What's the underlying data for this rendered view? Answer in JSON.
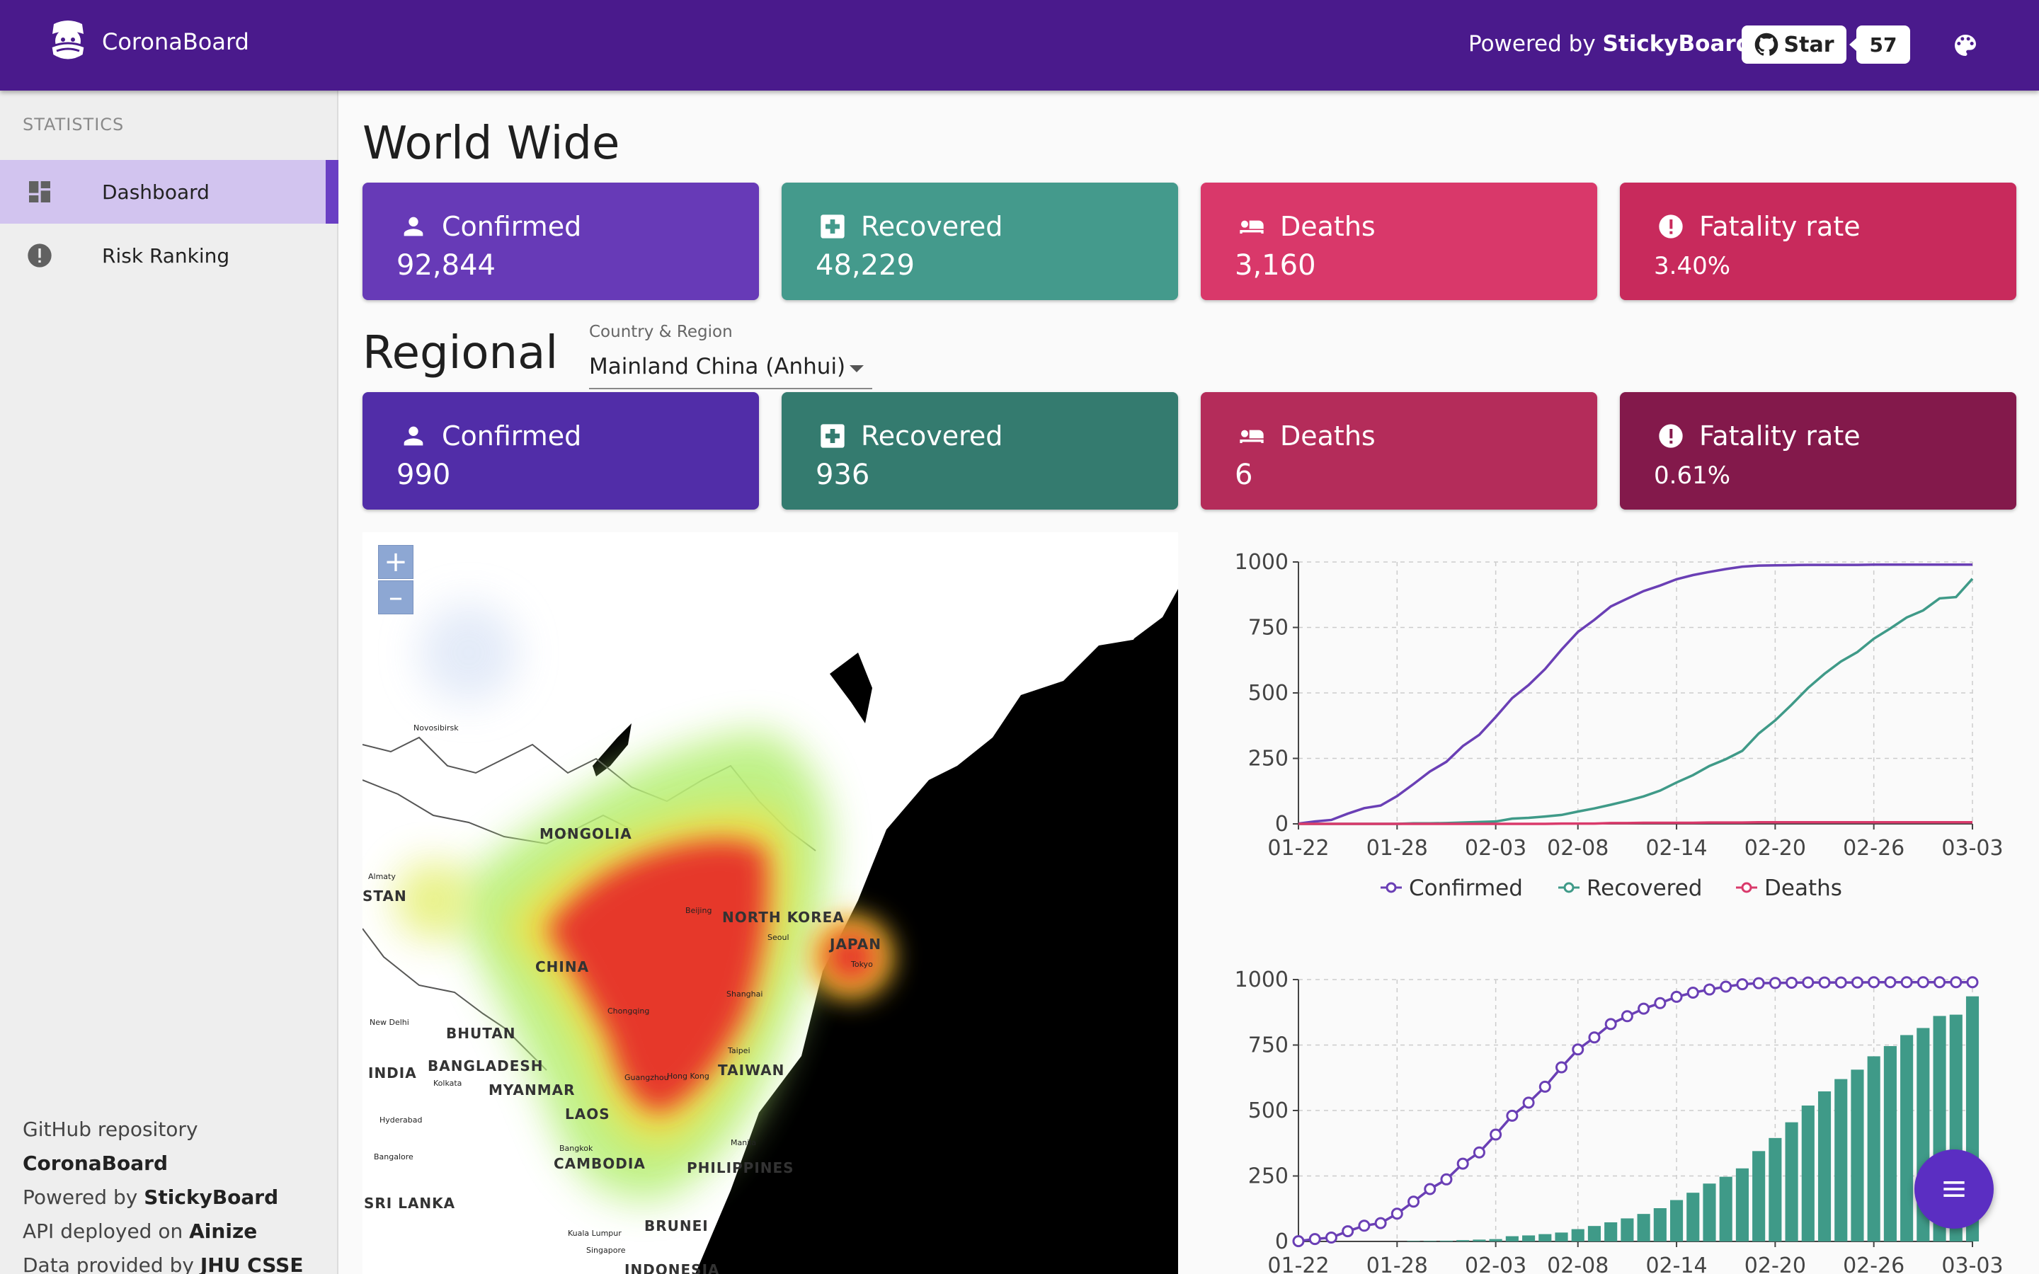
{
  "app": {
    "title": "CoronaBoard"
  },
  "header": {
    "powered_prefix": "Powered by",
    "powered_brand": "StickyBoard",
    "github_star_label": "Star",
    "github_star_count": "57",
    "icons": [
      "corona-mask-logo-icon",
      "github-icon",
      "palette-icon"
    ]
  },
  "sidebar": {
    "section": "STATISTICS",
    "items": [
      {
        "label": "Dashboard",
        "icon": "dashboard-icon",
        "active": true
      },
      {
        "label": "Risk Ranking",
        "icon": "alert-circle-icon",
        "active": false
      }
    ],
    "footer": [
      {
        "prefix": "GitHub repository",
        "link": "CoronaBoard"
      },
      {
        "prefix": "Powered by",
        "link": "StickyBoard"
      },
      {
        "prefix": "API deployed on",
        "link": "Ainize"
      },
      {
        "prefix": "Data provided by",
        "link": "JHU CSSE"
      }
    ]
  },
  "world": {
    "title": "World Wide",
    "cards": [
      {
        "label": "Confirmed",
        "value": "92,844",
        "icon": "person-icon",
        "color": "#673ab7"
      },
      {
        "label": "Recovered",
        "value": "48,229",
        "icon": "medical-plus-icon",
        "color": "#449a8c"
      },
      {
        "label": "Deaths",
        "value": "3,160",
        "icon": "bed-icon",
        "color": "#d9386a"
      },
      {
        "label": "Fatality rate",
        "value": "3.40%",
        "icon": "alert-circle-icon",
        "color": "#c82a5c"
      }
    ]
  },
  "regional": {
    "title": "Regional",
    "select_label": "Country & Region",
    "select_value": "Mainland China (Anhui)",
    "cards": [
      {
        "label": "Confirmed",
        "value": "990",
        "icon": "person-icon",
        "color": "#512da8"
      },
      {
        "label": "Recovered",
        "value": "936",
        "icon": "medical-plus-icon",
        "color": "#347b6f"
      },
      {
        "label": "Deaths",
        "value": "6",
        "icon": "bed-icon",
        "color": "#b42c5a"
      },
      {
        "label": "Fatality rate",
        "value": "0.61%",
        "icon": "alert-circle-icon",
        "color": "#83194b"
      }
    ]
  },
  "map": {
    "zoom_in": "+",
    "zoom_out": "–",
    "labels": [
      "MONGOLIA",
      "NORTH KOREA",
      "JAPAN",
      "CHINA",
      "BHUTAN",
      "INDIA",
      "BANGLADESH",
      "MYANMAR",
      "LAOS",
      "TAIWAN",
      "CAMBODIA",
      "PHILIPPINES",
      "BRUNEI",
      "STAN",
      "SRI LANKA",
      "INDONESIA"
    ],
    "cities": [
      "Novosibirsk",
      "Almaty",
      "Beijing",
      "Seoul",
      "Tokyo",
      "Chongqing",
      "Shanghai",
      "Taipei",
      "Guangzhou",
      "Hong Kong",
      "New Delhi",
      "Kolkata",
      "Hyderabad",
      "Bangalore",
      "Bangkok",
      "Manila",
      "Kuala Lumpur",
      "Singapore"
    ]
  },
  "chart_data": [
    {
      "type": "line",
      "x": [
        "01-22",
        "01-23",
        "01-24",
        "01-25",
        "01-26",
        "01-27",
        "01-28",
        "01-29",
        "01-30",
        "01-31",
        "02-01",
        "02-02",
        "02-03",
        "02-04",
        "02-05",
        "02-06",
        "02-07",
        "02-08",
        "02-09",
        "02-10",
        "02-11",
        "02-12",
        "02-13",
        "02-14",
        "02-15",
        "02-16",
        "02-17",
        "02-18",
        "02-19",
        "02-20",
        "02-21",
        "02-22",
        "02-23",
        "02-24",
        "02-25",
        "02-26",
        "02-27",
        "02-28",
        "02-29",
        "03-01",
        "03-02",
        "03-03"
      ],
      "xticks": [
        "01-22",
        "01-28",
        "02-03",
        "02-08",
        "02-14",
        "02-20",
        "02-26",
        "03-03"
      ],
      "ylim": [
        0,
        1000
      ],
      "yticks": [
        0,
        250,
        500,
        750,
        1000
      ],
      "grid": true,
      "legend": "bottom",
      "series": [
        {
          "name": "Confirmed",
          "color": "#6a3fb5",
          "values": [
            1,
            9,
            15,
            39,
            60,
            70,
            106,
            152,
            200,
            237,
            297,
            340,
            408,
            480,
            530,
            591,
            665,
            733,
            779,
            830,
            860,
            889,
            910,
            934,
            950,
            962,
            973,
            982,
            986,
            987,
            988,
            989,
            989,
            989,
            989,
            990,
            990,
            990,
            990,
            990,
            990,
            990
          ]
        },
        {
          "name": "Recovered",
          "color": "#3f9a88",
          "values": [
            0,
            0,
            0,
            0,
            0,
            0,
            0,
            2,
            2,
            3,
            5,
            7,
            9,
            20,
            23,
            28,
            34,
            47,
            59,
            73,
            88,
            105,
            127,
            158,
            186,
            221,
            247,
            279,
            345,
            395,
            455,
            519,
            573,
            620,
            656,
            707,
            746,
            788,
            815,
            861,
            866,
            936
          ]
        },
        {
          "name": "Deaths",
          "color": "#d93a6b",
          "values": [
            0,
            0,
            0,
            0,
            0,
            0,
            0,
            0,
            0,
            0,
            0,
            0,
            0,
            0,
            0,
            0,
            1,
            1,
            1,
            3,
            3,
            4,
            4,
            4,
            4,
            5,
            5,
            5,
            6,
            6,
            6,
            6,
            6,
            6,
            6,
            6,
            6,
            6,
            6,
            6,
            6,
            6
          ]
        }
      ]
    },
    {
      "type": "bar",
      "x": [
        "01-22",
        "01-23",
        "01-24",
        "01-25",
        "01-26",
        "01-27",
        "01-28",
        "01-29",
        "01-30",
        "01-31",
        "02-01",
        "02-02",
        "02-03",
        "02-04",
        "02-05",
        "02-06",
        "02-07",
        "02-08",
        "02-09",
        "02-10",
        "02-11",
        "02-12",
        "02-13",
        "02-14",
        "02-15",
        "02-16",
        "02-17",
        "02-18",
        "02-19",
        "02-20",
        "02-21",
        "02-22",
        "02-23",
        "02-24",
        "02-25",
        "02-26",
        "02-27",
        "02-28",
        "02-29",
        "03-01",
        "03-02",
        "03-03"
      ],
      "xticks": [
        "01-22",
        "01-28",
        "02-03",
        "02-08",
        "02-14",
        "02-20",
        "02-26",
        "03-03"
      ],
      "ylim": [
        0,
        1000
      ],
      "yticks": [
        0,
        250,
        500,
        750,
        1000
      ],
      "grid": true,
      "series": [
        {
          "name": "Recovered",
          "color": "#3f9a88",
          "kind": "bar",
          "values": [
            0,
            0,
            0,
            0,
            0,
            0,
            0,
            2,
            2,
            3,
            5,
            7,
            9,
            20,
            23,
            28,
            34,
            47,
            59,
            73,
            88,
            105,
            127,
            158,
            186,
            221,
            247,
            279,
            345,
            395,
            455,
            519,
            573,
            620,
            656,
            707,
            746,
            788,
            815,
            861,
            866,
            936
          ]
        },
        {
          "name": "Confirmed",
          "color": "#6a3fb5",
          "kind": "line-markers",
          "values": [
            1,
            9,
            15,
            39,
            60,
            70,
            106,
            152,
            200,
            237,
            297,
            340,
            408,
            480,
            530,
            591,
            665,
            733,
            779,
            830,
            860,
            889,
            910,
            934,
            950,
            962,
            973,
            982,
            986,
            987,
            988,
            989,
            989,
            989,
            989,
            990,
            990,
            990,
            990,
            990,
            990,
            990
          ]
        }
      ]
    }
  ]
}
